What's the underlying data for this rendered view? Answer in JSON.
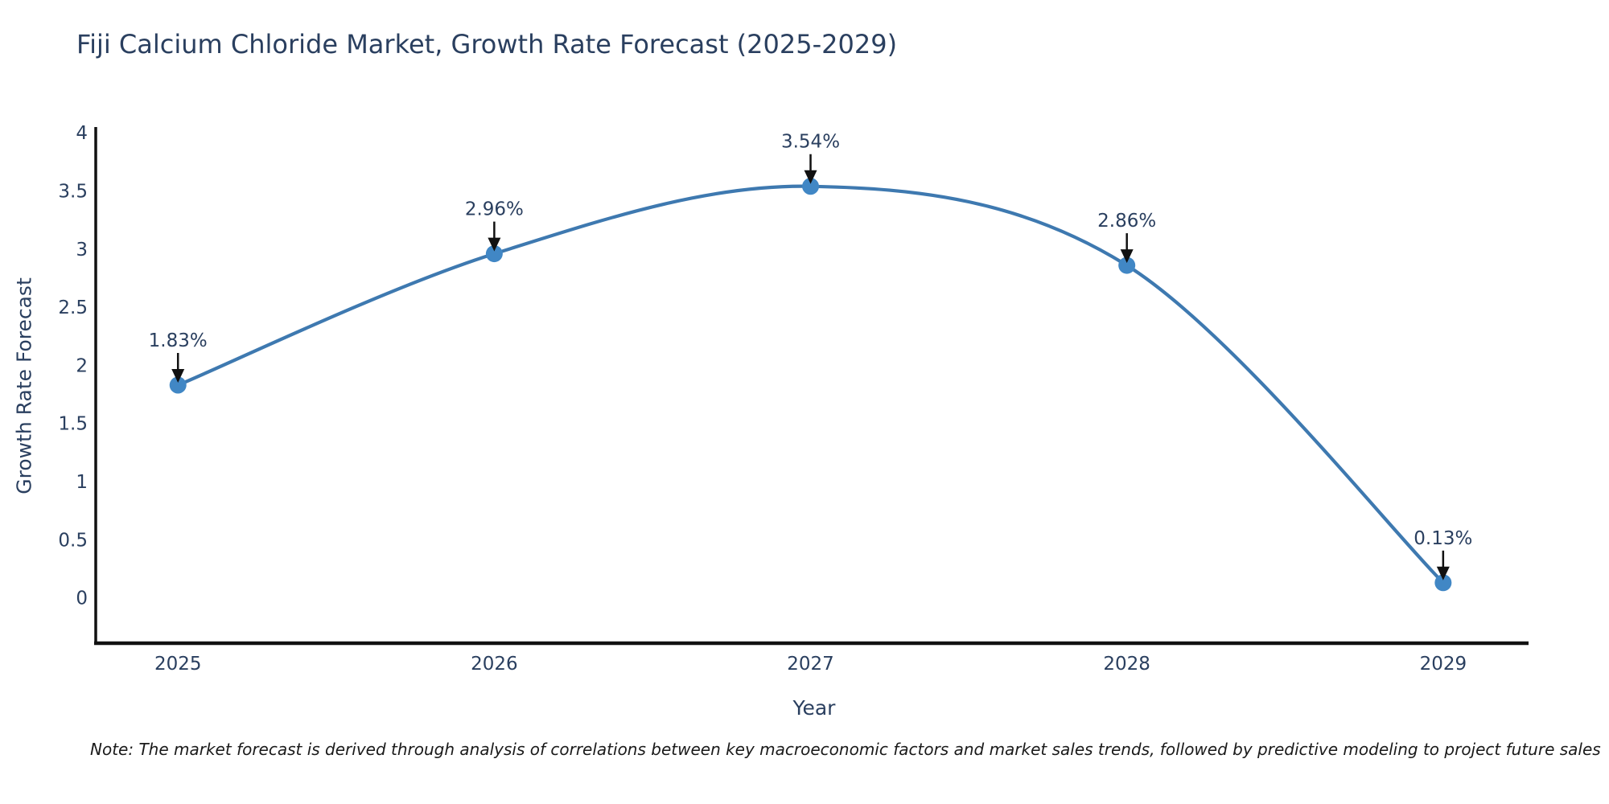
{
  "note": "Note: The market forecast is derived through analysis of correlations between key macroeconomic factors and market sales trends, followed by predictive modeling to project future sales",
  "chart_data": {
    "type": "line",
    "title": "Fiji Calcium Chloride Market, Growth Rate Forecast (2025-2029)",
    "xlabel": "Year",
    "ylabel": "Growth Rate Forecast",
    "x": [
      2025,
      2026,
      2027,
      2028,
      2029
    ],
    "values": [
      1.83,
      2.96,
      3.54,
      2.86,
      0.13
    ],
    "point_labels": [
      "1.83%",
      "2.96%",
      "3.54%",
      "2.86%",
      "0.13%"
    ],
    "x_tick_labels": [
      "2025",
      "2026",
      "2027",
      "2028",
      "2029"
    ],
    "y_ticks": [
      0,
      0.5,
      1,
      1.5,
      2,
      2.5,
      3,
      3.5,
      4
    ],
    "y_tick_labels": [
      "0",
      "0.5",
      "1",
      "1.5",
      "2",
      "2.5",
      "3",
      "3.5",
      "4"
    ],
    "xlim": [
      2024.74,
      2029.27
    ],
    "ylim": [
      -0.39,
      4.05
    ],
    "line_shape": "spline",
    "grid": false,
    "legend": "none",
    "colors": {
      "line": "#3e79b0",
      "marker": "#4187c5",
      "axis_line": "#111111",
      "text": "#2a3f5f",
      "arrow": "#111111",
      "note_text": "#1a1a1a"
    }
  }
}
